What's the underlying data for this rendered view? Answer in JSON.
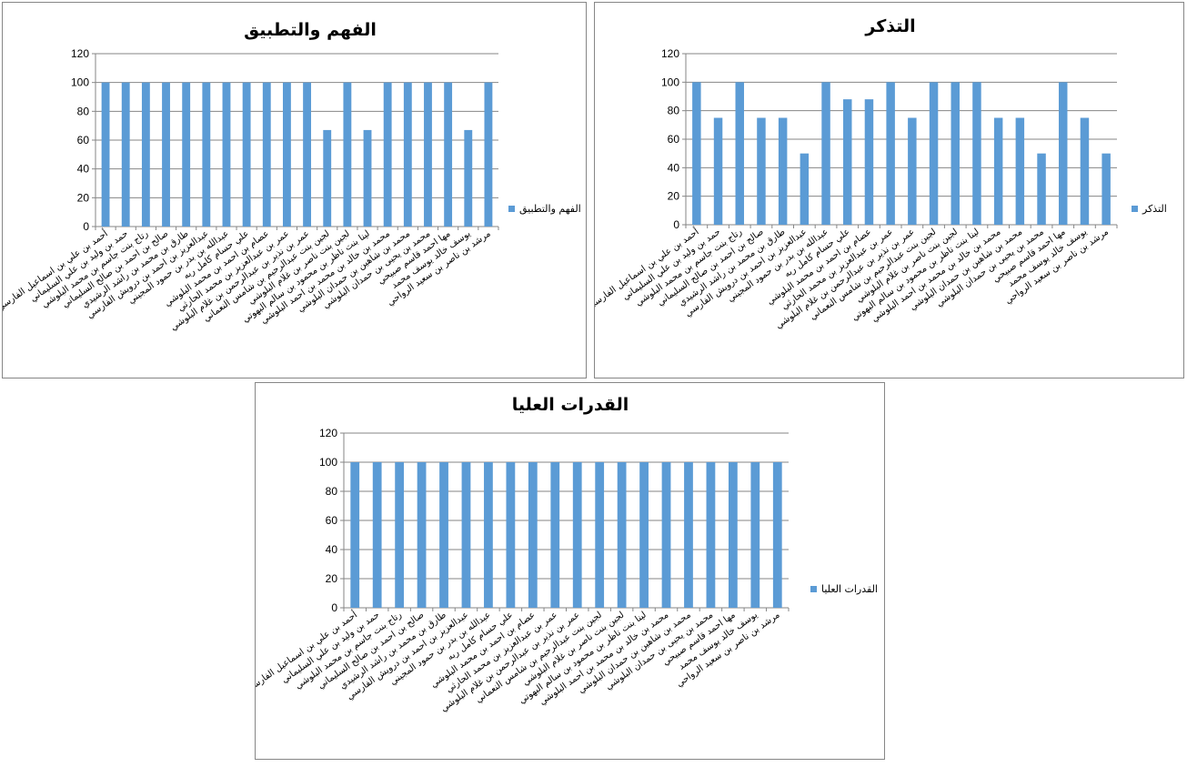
{
  "colors": {
    "bar": "#5B9BD5",
    "grid": "#868686",
    "axis": "#868686"
  },
  "categories": [
    "أحمد بن علي بن اسماعيل الفارسي",
    "حمد بن وليد بن علي السليماني",
    "رتاج بنت جاسم بن محمد البلوشي",
    "صالح بن احمد بن صالح السليماني",
    "طارق بن محمد بن راشد الرشيدي",
    "عبدالعزيز بن احمد بن درويش الفارسي",
    "عبدالله بن بدر بن حمود المجيني",
    "علي حسام كامل ربه",
    "عصام بن احمد بن محمد البلوشي",
    "عمر بن عبدالعزيز بن محمد الحارثي",
    "عمر بن نذير بن عبدالرحمن بن غلام البلوشي",
    "لجين بنت عبدالرحيم بن شامس النعماني",
    "لجين بنت ناصر بن غلام البلوشي",
    "لينا بنت ناظر بن محمود بن سالم البهوتي",
    "محمد بن خالد بن محمد بن احمد البلوشي",
    "محمد بن شاهين بن حمدان البلوشي",
    "محمد بن يحيى بن حمدان البلوشي",
    "مها احمد قاسم صبيحي",
    "يوسف خالد يوسف محمد",
    "مرشد بن ناصر بن سعيد الرواحي"
  ],
  "chart_data": [
    {
      "type": "bar",
      "title": "الفهم والتطبيق",
      "series": [
        {
          "name": "الفهم والتطبيق",
          "values": [
            100,
            100,
            100,
            100,
            100,
            100,
            100,
            100,
            100,
            100,
            100,
            67,
            100,
            67,
            100,
            100,
            100,
            100,
            67,
            100
          ]
        }
      ],
      "ylim": [
        0,
        120
      ],
      "yticks": [
        0,
        20,
        40,
        60,
        80,
        100,
        120
      ],
      "legend": "right",
      "grid": true
    },
    {
      "type": "bar",
      "title": "التذكر",
      "series": [
        {
          "name": "التذكر",
          "values": [
            100,
            75,
            100,
            75,
            75,
            50,
            100,
            88,
            88,
            100,
            75,
            100,
            100,
            100,
            75,
            75,
            50,
            100,
            75,
            50
          ]
        }
      ],
      "ylim": [
        0,
        120
      ],
      "yticks": [
        0,
        20,
        40,
        60,
        80,
        100,
        120
      ],
      "legend": "right",
      "grid": true
    },
    {
      "type": "bar",
      "title": "القدرات العليا",
      "series": [
        {
          "name": "القدرات العليا",
          "values": [
            100,
            100,
            100,
            100,
            100,
            100,
            100,
            100,
            100,
            100,
            100,
            100,
            100,
            100,
            100,
            100,
            100,
            100,
            100,
            100
          ]
        }
      ],
      "ylim": [
        0,
        120
      ],
      "yticks": [
        0,
        20,
        40,
        60,
        80,
        100,
        120
      ],
      "legend": "right",
      "grid": true
    }
  ]
}
